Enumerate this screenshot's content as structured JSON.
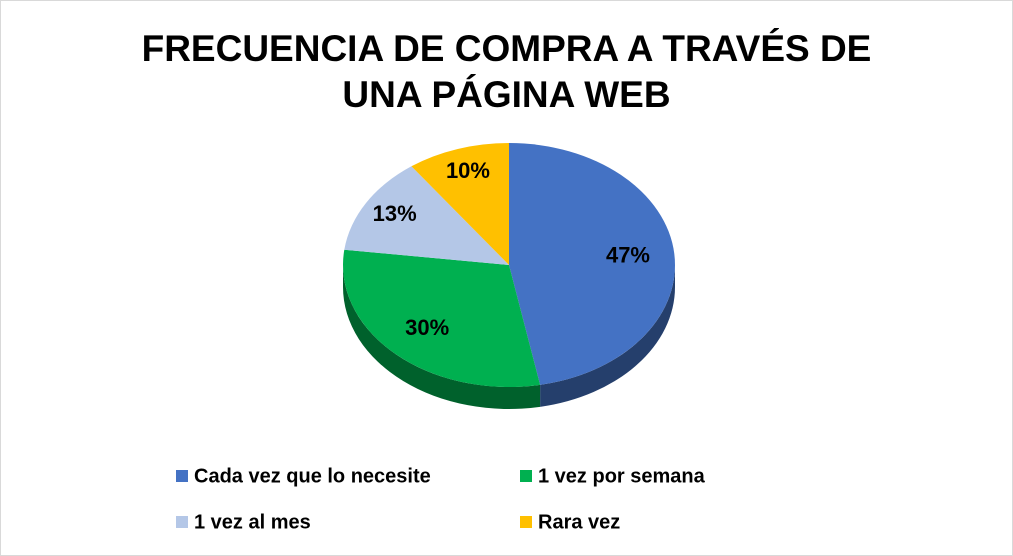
{
  "chart_data": {
    "type": "pie",
    "title": "FRECUENCIA DE COMPRA A TRAVÉS DE UNA PÁGINA WEB",
    "categories": [
      "Cada vez que lo necesite",
      "1 vez por semana",
      "1 vez al mes",
      "Rara vez"
    ],
    "values": [
      47,
      30,
      13,
      10
    ],
    "value_labels": [
      "47%",
      "30%",
      "13%",
      "10%"
    ],
    "colors": [
      "#4472c4",
      "#00b050",
      "#b4c7e7",
      "#ffc000"
    ],
    "legend": "bottom"
  }
}
